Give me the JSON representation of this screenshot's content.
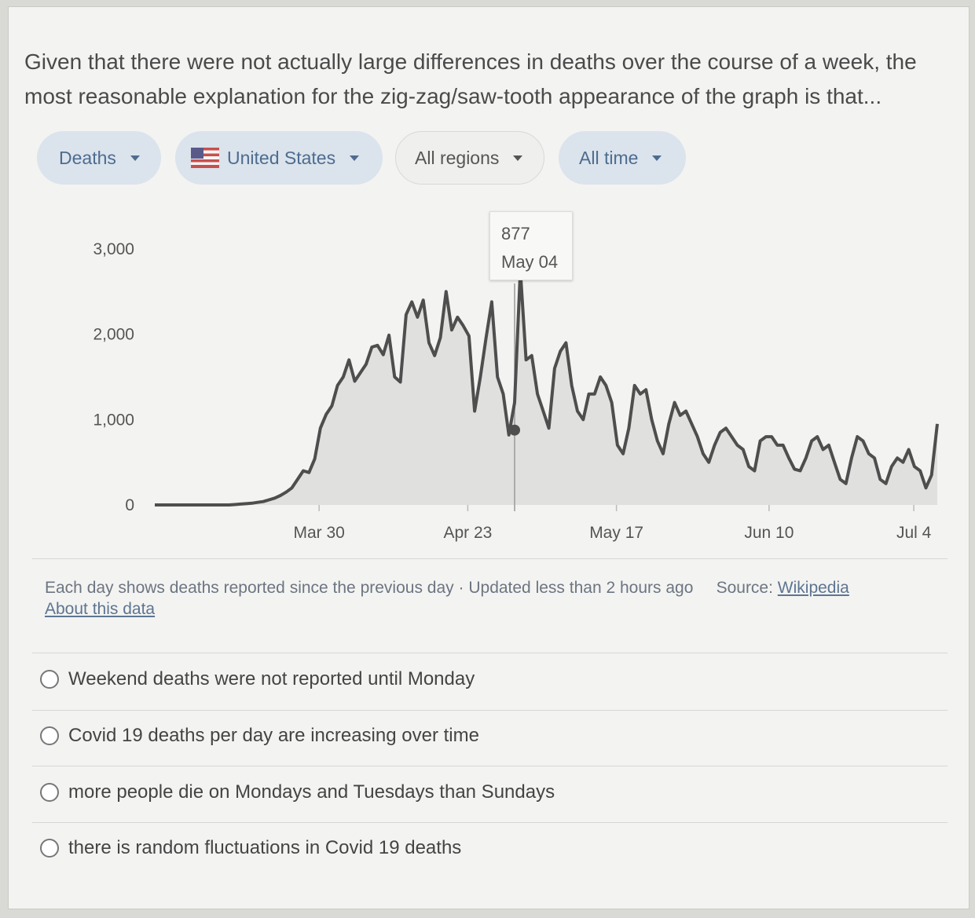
{
  "question": "Given that there were not actually large differences in deaths over the course of a week, the most reasonable explanation for the zig-zag/saw-tooth appearance of the graph is that...",
  "filters": {
    "metric": "Deaths",
    "country": "United States",
    "region": "All regions",
    "range": "All time"
  },
  "icons": {
    "country_flag": "us-flag-icon",
    "dropdown": "caret-down-icon",
    "radio": "radio-circle-icon"
  },
  "colors": {
    "line": "#4e4e4e",
    "area": "#e0e0de",
    "selected_chip": "#dbe3ec"
  },
  "tooltip": {
    "value": "877",
    "date": "May 04"
  },
  "chart_data": {
    "type": "line",
    "ylim": [
      0,
      3000
    ],
    "yticks": [
      "3,000",
      "2,000",
      "1,000",
      "0"
    ],
    "xticks": [
      "Mar 30",
      "Apr 23",
      "May 17",
      "Jun 10",
      "Jul 4"
    ],
    "highlight": {
      "date": "May 04",
      "value": 877
    },
    "series": [
      {
        "values": [
          0,
          0,
          0,
          0,
          0,
          0,
          0,
          0,
          0,
          0,
          0,
          0,
          0,
          0,
          5,
          10,
          15,
          20,
          30,
          40,
          60,
          80,
          110,
          150,
          200,
          300,
          400,
          380,
          540,
          900,
          1060,
          1160,
          1400,
          1500,
          1700,
          1450,
          1550,
          1650,
          1850,
          1870,
          1760,
          1990,
          1500,
          1440,
          2230,
          2380,
          2200,
          2400,
          1900,
          1750,
          1960,
          2500,
          2050,
          2200,
          2100,
          1980,
          1100,
          1500,
          1960,
          2380,
          1500,
          1300,
          820,
          1200,
          2750,
          1700,
          1750,
          1300,
          1100,
          900,
          1600,
          1800,
          1900,
          1400,
          1100,
          1000,
          1300,
          1300,
          1500,
          1400,
          1200,
          700,
          600,
          900,
          1400,
          1300,
          1350,
          1000,
          750,
          600,
          950,
          1200,
          1050,
          1100,
          950,
          800,
          600,
          500,
          700,
          850,
          900,
          800,
          700,
          650,
          450,
          400,
          750,
          800,
          800,
          700,
          700,
          550,
          420,
          400,
          550,
          750,
          800,
          650,
          700,
          500,
          300,
          250,
          550,
          800,
          750,
          600,
          550,
          300,
          250,
          450,
          550,
          500,
          650,
          450,
          400,
          200,
          350,
          950
        ]
      }
    ]
  },
  "footer": {
    "note": "Each day shows deaths reported since the previous day",
    "sep": "·",
    "updated": "Updated less than 2 hours ago",
    "source_label": "Source:",
    "source_link": "Wikipedia",
    "about_link": "About this data"
  },
  "options": [
    "Weekend deaths were not reported until Monday",
    "Covid 19 deaths per day are increasing over time",
    "more people die on Mondays and Tuesdays than Sundays",
    "there is random fluctuations in Covid 19 deaths"
  ]
}
